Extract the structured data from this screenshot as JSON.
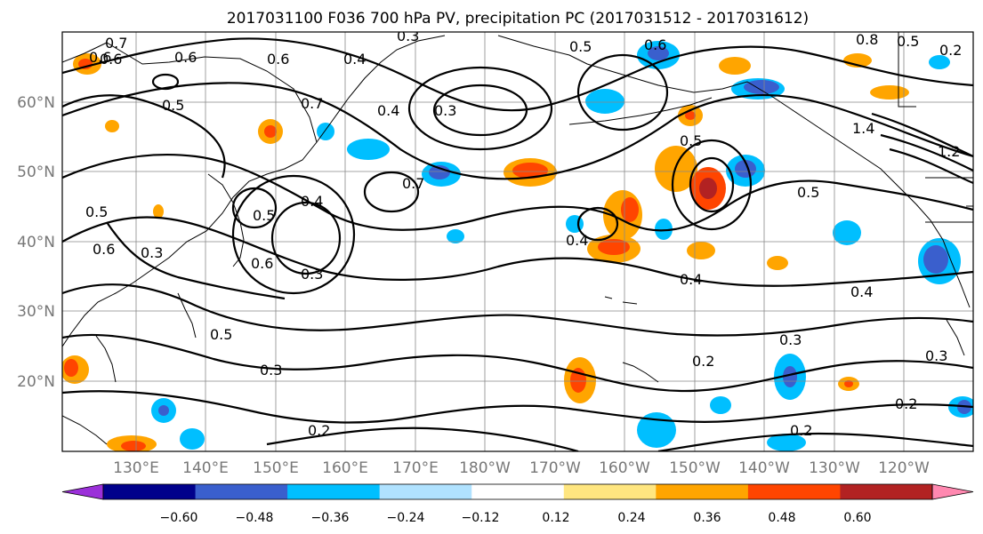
{
  "title": "2017031100 F036 700 hPa PV, precipitation PC (2017031512 - 2017031612)",
  "lat_labels": [
    "60°N",
    "50°N",
    "40°N",
    "30°N",
    "20°N"
  ],
  "lon_labels": [
    "130°E",
    "140°E",
    "150°E",
    "160°E",
    "170°E",
    "180°W",
    "170°W",
    "160°W",
    "150°W",
    "140°W",
    "130°W",
    "120°W"
  ],
  "colorbar": {
    "colors": [
      "#9b30d9",
      "#00008b",
      "#3a5fcd",
      "#00bfff",
      "#b0e2ff",
      "#ffffff",
      "#ffe680",
      "#ffa500",
      "#ff4500",
      "#b22222",
      "#ff88b0"
    ],
    "tick_labels": [
      "−0.60",
      "−0.48",
      "−0.36",
      "−0.24",
      "−0.12",
      "0.12",
      "0.24",
      "0.36",
      "0.48",
      "0.60"
    ]
  },
  "contour_labels": [
    "0.7",
    "0.6",
    "0.6",
    "0.6",
    "0.5",
    "0.7",
    "0.4",
    "0.3",
    "0.5",
    "0.6",
    "0.3",
    "0.4",
    "0.7",
    "0.6",
    "0.5",
    "0.4",
    "0.5",
    "0.6",
    "0.3",
    "0.5",
    "0.6",
    "0.4",
    "0.3",
    "0.5",
    "0.3",
    "0.2",
    "0.4",
    "0.5",
    "0.4",
    "0.3",
    "0.2",
    "1.4",
    "1.2",
    "0.2",
    "0.3",
    "0.2",
    "0.2",
    "0.8",
    "0.5"
  ]
}
